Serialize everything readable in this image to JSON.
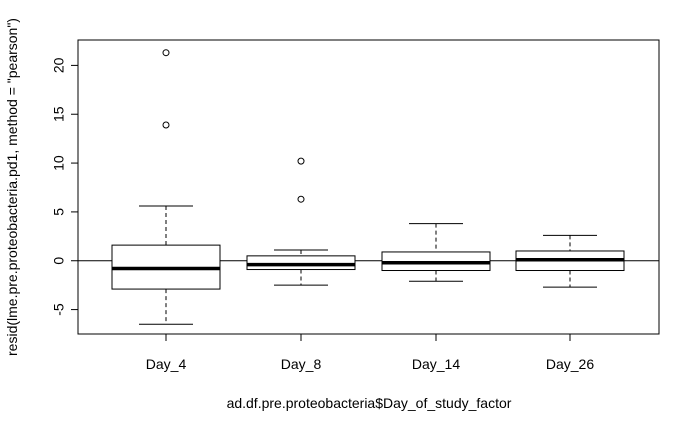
{
  "chart_data": {
    "type": "boxplot",
    "title": "",
    "xlabel": "ad.df.pre.proteobacteria$Day_of_study_factor",
    "ylabel": "resid(lme.pre.proteobacteria.pd1, method = \"pearson\")",
    "ylim": [
      -7.5,
      22.6
    ],
    "yticks": [
      -5,
      0,
      5,
      10,
      15,
      20
    ],
    "reference_line": 0,
    "categories": [
      "Day_4",
      "Day_8",
      "Day_14",
      "Day_26"
    ],
    "boxes": [
      {
        "category": "Day_4",
        "whisker_low": -6.5,
        "q1": -2.9,
        "median": -0.8,
        "q3": 1.6,
        "whisker_high": 5.6,
        "outliers": [
          13.9,
          21.3
        ]
      },
      {
        "category": "Day_8",
        "whisker_low": -2.5,
        "q1": -0.9,
        "median": -0.4,
        "q3": 0.5,
        "whisker_high": 1.1,
        "outliers": [
          6.3,
          10.2
        ]
      },
      {
        "category": "Day_14",
        "whisker_low": -2.1,
        "q1": -1.0,
        "median": -0.2,
        "q3": 0.9,
        "whisker_high": 3.8,
        "outliers": []
      },
      {
        "category": "Day_26",
        "whisker_low": -2.7,
        "q1": -1.0,
        "median": 0.1,
        "q3": 1.0,
        "whisker_high": 2.6,
        "outliers": []
      }
    ]
  }
}
